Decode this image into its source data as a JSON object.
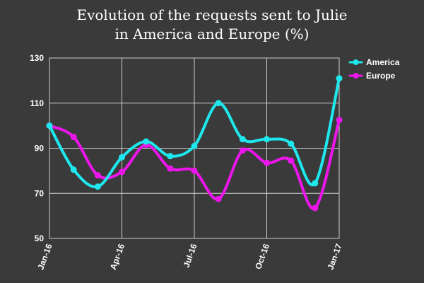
{
  "chart_data": {
    "type": "line",
    "title": [
      "Evolution of the requests sent to Julie",
      "in America and Europe (%)"
    ],
    "xlabel": "",
    "ylabel": "",
    "x": [
      "Jan-16",
      "Feb-16",
      "Mar-16",
      "Apr-16",
      "May-16",
      "Jun-16",
      "Jul-16",
      "Aug-16",
      "Sep-16",
      "Oct-16",
      "Nov-16",
      "Dec-16",
      "Jan-17"
    ],
    "x_tick_labels": [
      "Jan-16",
      "Apr-16",
      "Jul-16",
      "Oct-16",
      "Jan-17"
    ],
    "ylim": [
      50,
      130
    ],
    "yticks": [
      50,
      70,
      90,
      110,
      130
    ],
    "grid": true,
    "legend_position": "top-right",
    "series": [
      {
        "name": "America",
        "color": "#1ee8ee",
        "values": [
          100,
          80.5,
          73,
          86,
          93,
          86.5,
          91,
          110,
          94,
          94,
          92,
          74.5,
          121
        ]
      },
      {
        "name": "Europe",
        "color": "#ec16ec",
        "values": [
          100,
          95,
          78,
          79.5,
          91.5,
          81,
          80,
          67.5,
          89,
          83.5,
          84.5,
          63.5,
          102.5
        ]
      }
    ]
  }
}
